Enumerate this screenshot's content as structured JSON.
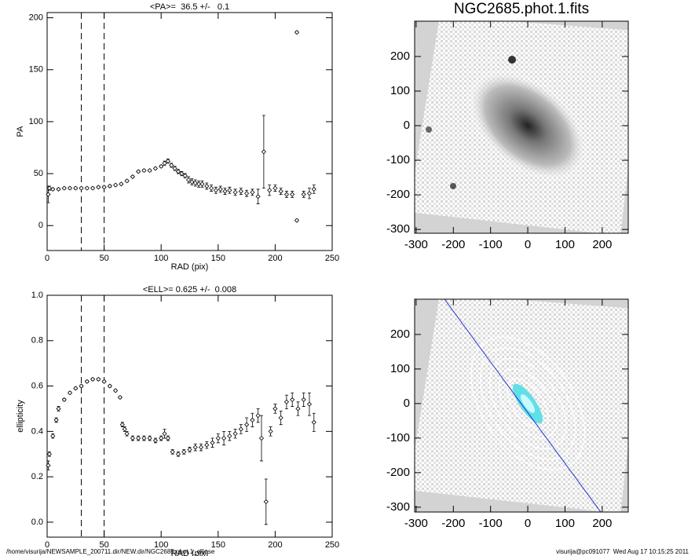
{
  "chart_data": [
    {
      "type": "scatter",
      "title": "<PA>=  36.5 +/-   0.1",
      "x_label": "RAD (pix)",
      "y_label": "PA",
      "xlim": [
        0,
        250
      ],
      "ylim": [
        -24,
        205
      ],
      "xticks": [
        0,
        50,
        100,
        150,
        200,
        250
      ],
      "yticks": [
        0,
        50,
        100,
        150,
        200
      ],
      "vlines": [
        30,
        50
      ],
      "color": "#000000",
      "x": [
        1,
        2,
        5,
        10,
        15,
        20,
        25,
        30,
        35,
        40,
        45,
        50,
        55,
        60,
        65,
        70,
        75,
        80,
        85,
        90,
        95,
        100,
        103,
        106,
        109,
        112,
        115,
        118,
        121,
        124,
        127,
        130,
        133,
        136,
        140,
        144,
        148,
        152,
        156,
        160,
        165,
        170,
        175,
        180,
        185,
        190,
        195,
        200,
        205,
        210,
        215,
        219,
        219,
        225,
        230,
        234
      ],
      "values": [
        30,
        36,
        35,
        35,
        36,
        36,
        36,
        36,
        36,
        36,
        37,
        37,
        38,
        39,
        40,
        43,
        47,
        52,
        53,
        53,
        55,
        57,
        60,
        62,
        58,
        55,
        52,
        50,
        48,
        44,
        42,
        41,
        40,
        40,
        38,
        36,
        34,
        35,
        33,
        34,
        32,
        33,
        31,
        32,
        28,
        71,
        34,
        36,
        33,
        30,
        30,
        186,
        5,
        30,
        31,
        35
      ],
      "errors": [
        8,
        2,
        1,
        1,
        1,
        1,
        1,
        1,
        1,
        1,
        1,
        1,
        1,
        1,
        1,
        1,
        1,
        1,
        1,
        1,
        1,
        1,
        2,
        2,
        2,
        2,
        2,
        2,
        2,
        3,
        3,
        3,
        3,
        3,
        3,
        3,
        3,
        3,
        3,
        3,
        3,
        3,
        3,
        3,
        7,
        35,
        5,
        3,
        3,
        3,
        3,
        1,
        1,
        3,
        5,
        4
      ]
    },
    {
      "type": "scatter",
      "title": "<ELL>= 0.625 +/-  0.008",
      "x_label": "RAD (pix)",
      "y_label": "ellipticity",
      "xlim": [
        0,
        250
      ],
      "ylim": [
        -0.066,
        1.0
      ],
      "xticks": [
        0,
        50,
        100,
        150,
        200,
        250
      ],
      "yticks": [
        {
          "value": 0,
          "label": "0.0"
        },
        0.2,
        0.4,
        0.6,
        0.8,
        {
          "value": 1,
          "label": "1.0"
        }
      ],
      "vlines": [
        30,
        50
      ],
      "color": "#000000",
      "x": [
        1,
        2,
        5,
        8,
        10,
        15,
        20,
        25,
        30,
        35,
        40,
        45,
        50,
        55,
        60,
        64,
        66,
        68,
        70,
        75,
        80,
        85,
        90,
        95,
        100,
        103,
        106,
        110,
        115,
        120,
        125,
        130,
        135,
        140,
        145,
        150,
        155,
        160,
        165,
        170,
        175,
        180,
        185,
        188,
        192,
        196,
        200,
        205,
        210,
        215,
        220,
        225,
        230,
        234
      ],
      "values": [
        0.25,
        0.3,
        0.38,
        0.45,
        0.5,
        0.54,
        0.57,
        0.59,
        0.6,
        0.62,
        0.63,
        0.63,
        0.62,
        0.6,
        0.58,
        0.55,
        0.43,
        0.41,
        0.39,
        0.37,
        0.37,
        0.37,
        0.37,
        0.36,
        0.37,
        0.39,
        0.37,
        0.31,
        0.3,
        0.31,
        0.32,
        0.33,
        0.33,
        0.34,
        0.35,
        0.37,
        0.37,
        0.38,
        0.39,
        0.41,
        0.43,
        0.45,
        0.47,
        0.37,
        0.09,
        0.4,
        0.5,
        0.46,
        0.53,
        0.54,
        0.5,
        0.54,
        0.52,
        0.44
      ],
      "errors": [
        0.02,
        0.01,
        0.01,
        0.01,
        0.01,
        0.005,
        0.005,
        0.005,
        0.005,
        0.005,
        0.005,
        0.005,
        0.005,
        0.005,
        0.005,
        0.005,
        0.01,
        0.01,
        0.01,
        0.01,
        0.01,
        0.01,
        0.01,
        0.01,
        0.01,
        0.02,
        0.01,
        0.01,
        0.01,
        0.01,
        0.01,
        0.015,
        0.015,
        0.015,
        0.02,
        0.02,
        0.03,
        0.02,
        0.02,
        0.02,
        0.03,
        0.03,
        0.03,
        0.1,
        0.1,
        0.02,
        0.02,
        0.03,
        0.03,
        0.03,
        0.03,
        0.03,
        0.05,
        0.04
      ]
    },
    {
      "type": "image",
      "title": "NGC2685.phot.1.fits",
      "xlim": [
        -304,
        270
      ],
      "ylim": [
        -311,
        302
      ],
      "xticks": [
        -300,
        -200,
        -100,
        0,
        100,
        200
      ],
      "yticks": [
        -300,
        -200,
        -100,
        0,
        100,
        200
      ]
    },
    {
      "type": "image",
      "xlim": [
        -304,
        270
      ],
      "ylim": [
        -314,
        302
      ],
      "xticks": [
        -300,
        -200,
        -100,
        0,
        100,
        200
      ],
      "yticks": [
        -300,
        -200,
        -100,
        0,
        100,
        200
      ]
    }
  ],
  "footer": {
    "path": "/home/visurija/NEWSAMPLE_200711.dir/NEW.dir/NGC2685.phot.1_ellipse",
    "stamp": "visurija@pc091077  Wed Aug 17 10:15:25 2011"
  }
}
